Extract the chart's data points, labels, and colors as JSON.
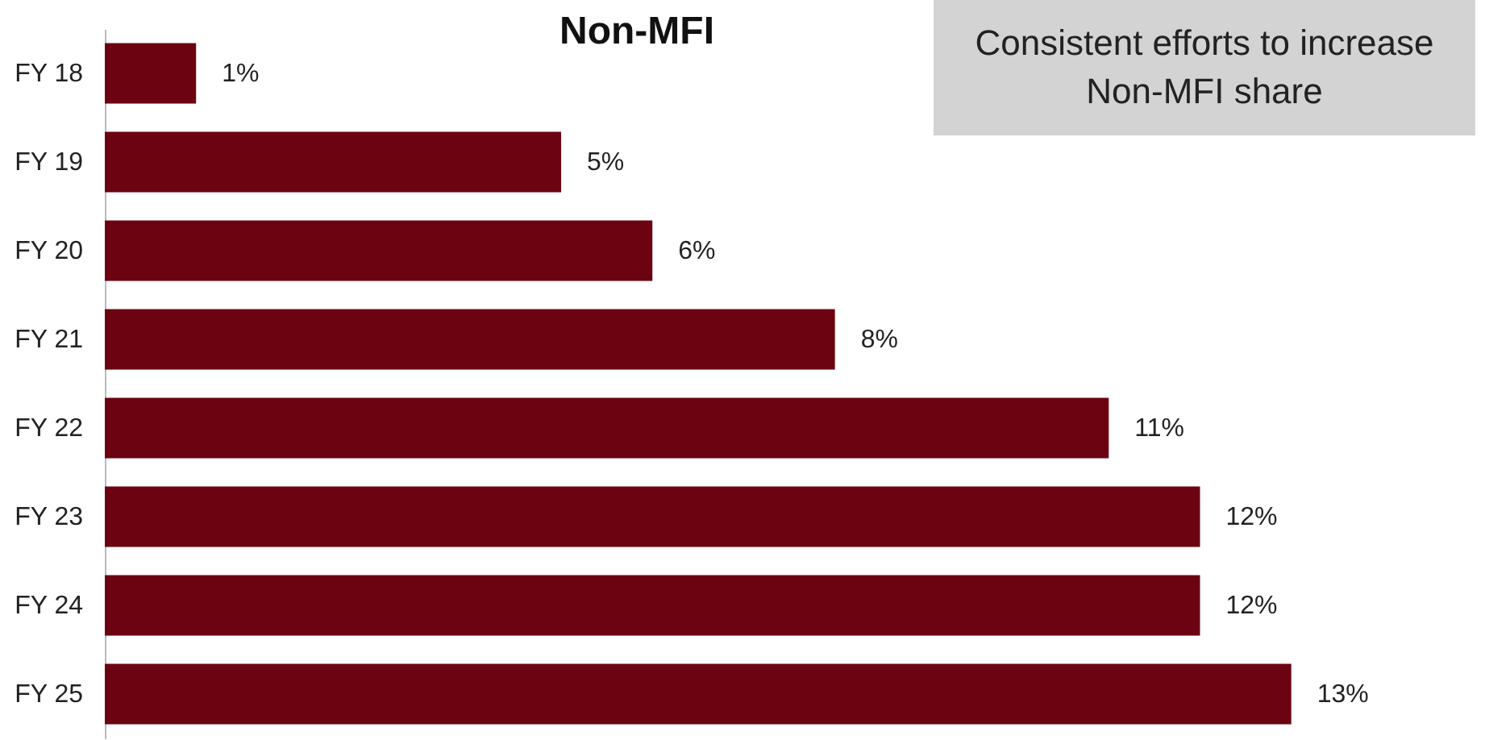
{
  "chart_data": {
    "type": "bar",
    "orientation": "horizontal",
    "title": "Non-MFI",
    "annotations": [
      "Consistent efforts to increase Non-MFI share"
    ],
    "categories": [
      "FY 18",
      "FY 19",
      "FY 20",
      "FY 21",
      "FY 22",
      "FY 23",
      "FY 24",
      "FY 25"
    ],
    "values": [
      1,
      5,
      6,
      8,
      11,
      12,
      12,
      13
    ],
    "color": "#6b0311",
    "data_labels": true,
    "value_labels": [
      "1%",
      "5%",
      "6%",
      "8%",
      "11%",
      "12%",
      "12%",
      "13%"
    ]
  }
}
